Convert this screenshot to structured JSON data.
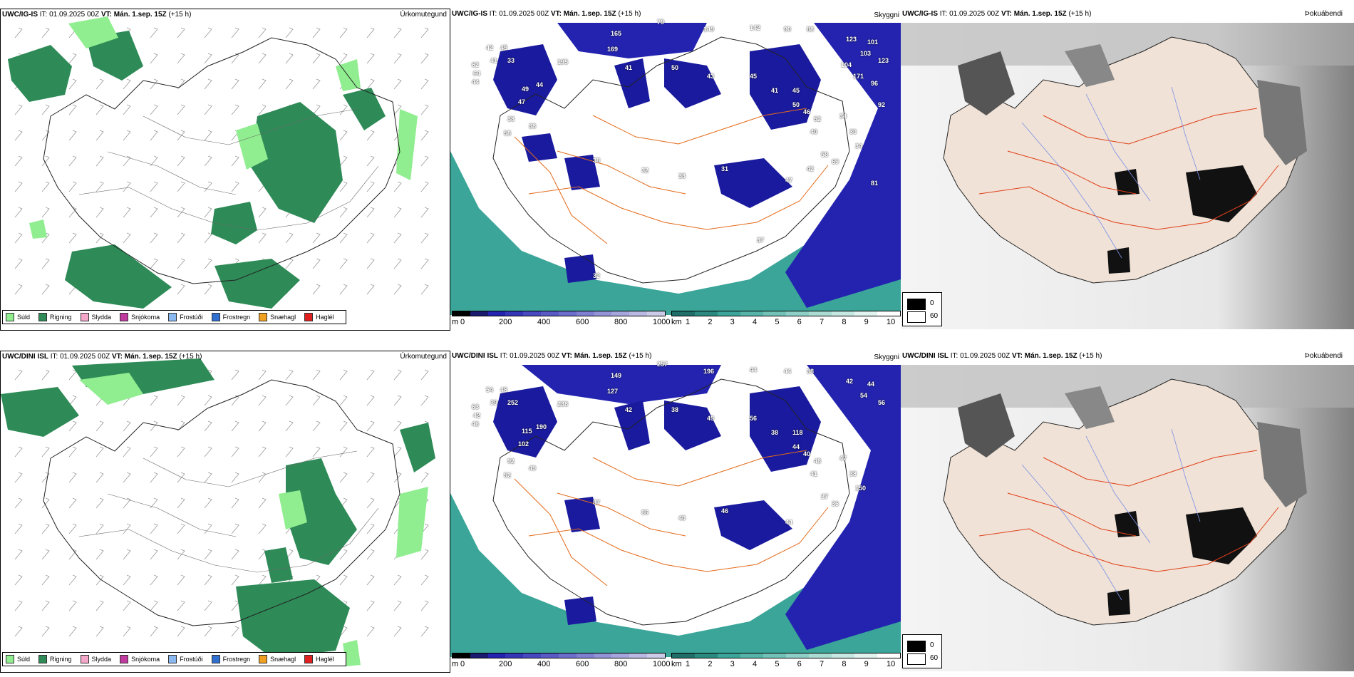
{
  "rows": [
    {
      "model": "UWC/IG-IS",
      "it_label": "IT:",
      "it_value": "01.09.2025 00Z",
      "vt_label": "VT:",
      "vt_value": "Mán. 1.sep. 15Z",
      "lead": "(+15 h)",
      "title1": "Úrkomutegund",
      "title2": "Skyggni",
      "title3": "Þokuábendi",
      "vis_labels": [
        "42",
        "45",
        "41",
        "33",
        "195",
        "165",
        "79",
        "169",
        "149",
        "142",
        "90",
        "88",
        "123",
        "101",
        "103",
        "123",
        "62",
        "64",
        "44",
        "49",
        "44",
        "47",
        "38",
        "58",
        "38",
        "41",
        "50",
        "43",
        "45",
        "41",
        "45",
        "50",
        "46",
        "52",
        "34",
        "40",
        "30",
        "34",
        "58",
        "69",
        "38",
        "32",
        "33",
        "31",
        "47",
        "42",
        "81",
        "92",
        "171",
        "96",
        "37",
        "32",
        "104"
      ]
    },
    {
      "model": "UWC/DINI ISL",
      "it_label": "IT:",
      "it_value": "01.09.2025 00Z",
      "vt_label": "VT:",
      "vt_value": "Mán. 1.sep. 15Z",
      "lead": "(+15 h)",
      "title1": "Úrkomutegund",
      "title2": "Skyggni",
      "title3": "Þokuábendi",
      "vis_labels": [
        "54",
        "46",
        "39",
        "252",
        "238",
        "149",
        "257",
        "127",
        "196",
        "44",
        "44",
        "38",
        "42",
        "44",
        "54",
        "56",
        "63",
        "42",
        "46",
        "115",
        "190",
        "102",
        "92",
        "52",
        "49",
        "42",
        "38",
        "49",
        "56",
        "38",
        "118",
        "44",
        "40",
        "48",
        "47",
        "41",
        "38",
        "150",
        "37",
        "36",
        "87",
        "86",
        "40",
        "46",
        "44"
      ]
    }
  ],
  "precip_legend": [
    {
      "label": "Súld",
      "color": "#90ee90"
    },
    {
      "label": "Rigning",
      "color": "#2e8b57"
    },
    {
      "label": "Slydda",
      "color": "#f4a6c9"
    },
    {
      "label": "Snjókoma",
      "color": "#c0399f"
    },
    {
      "label": "Frostúði",
      "color": "#8ab8f0"
    },
    {
      "label": "Frostregn",
      "color": "#2f6fd0"
    },
    {
      "label": "Snæhagl",
      "color": "#f0a020"
    },
    {
      "label": "Haglél",
      "color": "#e02020"
    }
  ],
  "cbar_ceiling": {
    "unit": "m",
    "ticks": [
      "0",
      "200",
      "400",
      "600",
      "800",
      "1000"
    ]
  },
  "cbar_vis": {
    "unit": "km",
    "ticks": [
      "1",
      "2",
      "3",
      "4",
      "5",
      "6",
      "7",
      "8",
      "9",
      "10"
    ]
  },
  "fog_legend": {
    "min": "0",
    "max": "60"
  },
  "colors": {
    "rain": "#2e8b57",
    "drizzle": "#90ee90",
    "ceiling": "#1a1a9e",
    "vis_sea": "#3aa598",
    "fog_land": "#f0e2d6",
    "road": "#e36a1a"
  }
}
